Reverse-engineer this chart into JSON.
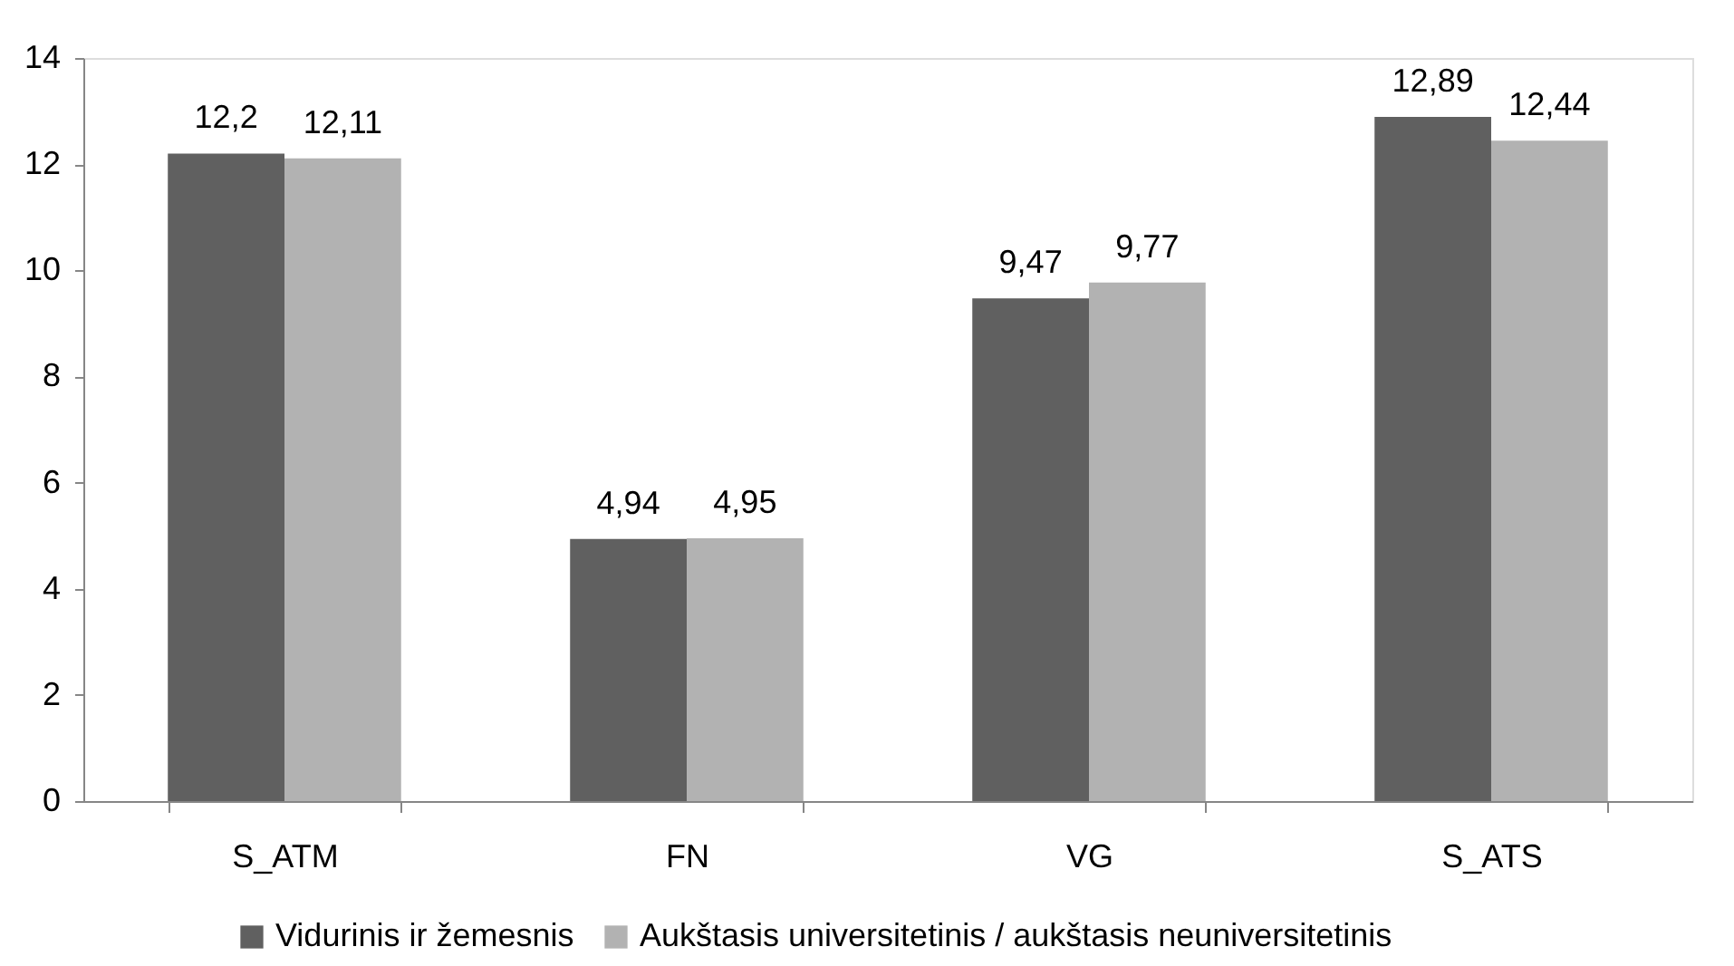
{
  "chart_data": {
    "type": "bar",
    "categories": [
      "S_ATM",
      "FN",
      "VG",
      "S_ATS"
    ],
    "series": [
      {
        "name": "Vidurinis ir žemesnis",
        "color": "#606060",
        "values": [
          12.2,
          4.94,
          9.47,
          12.89
        ],
        "value_labels": [
          "12,2",
          "4,94",
          "9,47",
          "12,89"
        ]
      },
      {
        "name": "Aukštasis universitetinis / aukštasis neuniversitetinis",
        "color": "#b2b2b2",
        "values": [
          12.11,
          4.95,
          9.77,
          12.44
        ],
        "value_labels": [
          "12,11",
          "4,95",
          "9,77",
          "12,44"
        ]
      }
    ],
    "ylim": [
      0,
      14
    ],
    "yticks": [
      0,
      2,
      4,
      6,
      8,
      10,
      12,
      14
    ],
    "grid": false,
    "legend": "bottom"
  }
}
